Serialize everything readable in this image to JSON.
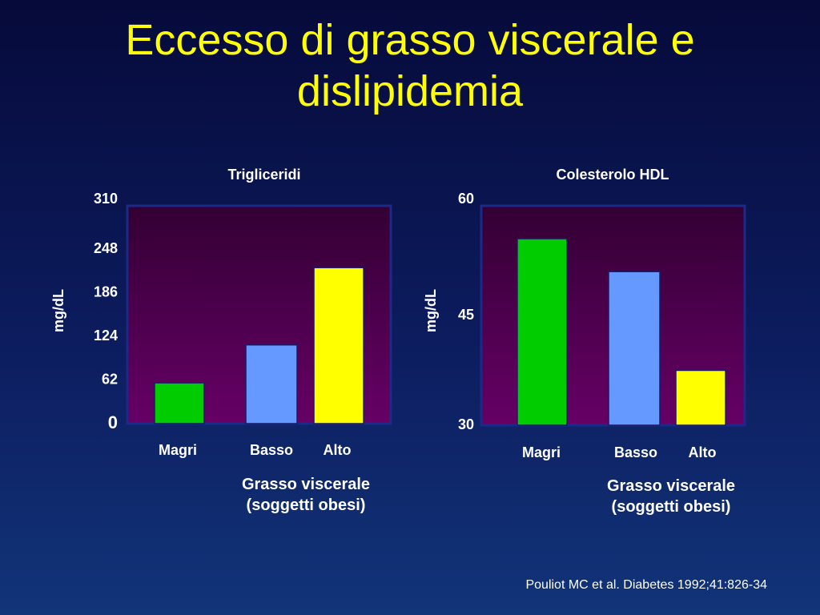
{
  "title": {
    "line1": "Eccesso di grasso viscerale e",
    "line2": "dislipidemia"
  },
  "citation": "Pouliot MC et al. Diabetes 1992;41:826-34",
  "colors": {
    "title": "#ffff00",
    "magri": "#00cc00",
    "basso": "#6699ff",
    "alto": "#ffff00",
    "plot_top": "#330033",
    "plot_bottom": "#660066",
    "plot_border": "#1a2a88"
  },
  "chart_data": [
    {
      "type": "bar",
      "title": "Trigliceridi",
      "ylabel": "mg/dL",
      "categories": [
        "Magri",
        "Basso",
        "Alto"
      ],
      "values": [
        58,
        112,
        222
      ],
      "ylim": [
        0,
        310
      ],
      "yticks": [
        0,
        62,
        124,
        186,
        248,
        310
      ],
      "xlabel_line1": "Grasso viscerale",
      "xlabel_line2": "(soggetti obesi)",
      "grid": false
    },
    {
      "type": "bar",
      "title": "Colesterolo HDL",
      "ylabel": "mg/dL",
      "categories": [
        "Magri",
        "Basso",
        "Alto"
      ],
      "values": [
        55.5,
        51,
        37.5
      ],
      "ylim": [
        30,
        60
      ],
      "yticks": [
        30,
        45,
        60
      ],
      "xlabel_line1": "Grasso viscerale",
      "xlabel_line2": "(soggetti obesi)",
      "grid": false
    }
  ]
}
